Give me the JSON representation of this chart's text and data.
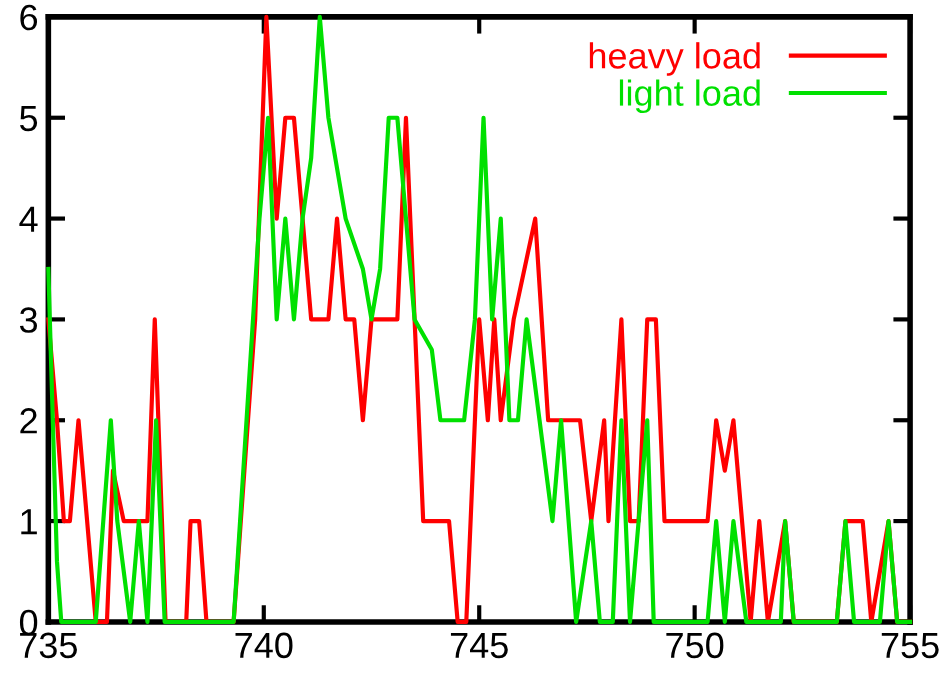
{
  "chart_data": {
    "type": "line",
    "xlim": [
      735,
      755
    ],
    "ylim": [
      0,
      6
    ],
    "xticks": [
      735,
      740,
      745,
      750,
      755
    ],
    "yticks": [
      0,
      1,
      2,
      3,
      4,
      5,
      6
    ],
    "legend": "top right",
    "grid": false,
    "line_style": "solid",
    "marker": "none",
    "series": [
      {
        "name": "heavy load",
        "color": "#ff0000",
        "x": [
          735.0,
          735.2,
          735.36,
          735.5,
          735.7,
          736.1,
          736.36,
          736.5,
          736.75,
          737.3,
          737.47,
          737.72,
          738.2,
          738.3,
          738.5,
          738.67,
          739.3,
          739.8,
          740.06,
          740.3,
          740.5,
          740.7,
          741.1,
          741.5,
          741.7,
          741.9,
          742.1,
          742.3,
          742.5,
          743.1,
          743.3,
          743.7,
          744.3,
          744.5,
          744.7,
          745.0,
          745.2,
          745.35,
          745.5,
          745.8,
          746.3,
          746.6,
          747.0,
          747.34,
          747.6,
          747.9,
          748.0,
          748.3,
          748.5,
          748.7,
          748.9,
          749.1,
          749.3,
          750.3,
          750.5,
          750.7,
          750.9,
          751.3,
          751.5,
          751.7,
          752.1,
          752.3,
          753.3,
          753.5,
          753.9,
          754.1,
          754.5,
          754.7,
          755.0
        ],
        "values": [
          3,
          2,
          1,
          1,
          2,
          0,
          0,
          1.5,
          1,
          1,
          3,
          0,
          0,
          1,
          1,
          0,
          0,
          3,
          6,
          4,
          5,
          5,
          3,
          3,
          4,
          3,
          3,
          2,
          3,
          3,
          5,
          1,
          1,
          0,
          0,
          3,
          2,
          3,
          2,
          3,
          4,
          2,
          2,
          2,
          1,
          2,
          1,
          3,
          1,
          1,
          3,
          3,
          1,
          1,
          2,
          1.5,
          2,
          0,
          1,
          0,
          1,
          0,
          0,
          1,
          1,
          0,
          1,
          0,
          0
        ]
      },
      {
        "name": "light load",
        "color": "#00e000",
        "x": [
          735.0,
          735.2,
          735.3,
          736.1,
          736.45,
          736.6,
          736.9,
          737.1,
          737.3,
          737.5,
          737.7,
          739.3,
          739.6,
          739.9,
          740.1,
          740.3,
          740.5,
          740.7,
          740.9,
          741.1,
          741.3,
          741.5,
          741.9,
          742.3,
          742.5,
          742.7,
          742.9,
          743.1,
          743.5,
          743.9,
          744.1,
          744.65,
          744.9,
          745.0,
          745.1,
          745.2,
          745.3,
          745.5,
          745.7,
          745.9,
          746.1,
          746.4,
          746.7,
          746.9,
          747.25,
          747.6,
          747.8,
          748.1,
          748.3,
          748.5,
          748.7,
          748.9,
          749.05,
          750.3,
          750.5,
          750.7,
          750.9,
          751.2,
          752.0,
          752.1,
          752.3,
          753.3,
          753.5,
          753.7,
          754.3,
          754.5,
          754.7,
          755.0
        ],
        "values": [
          3.5,
          0.6,
          0,
          0,
          2,
          1,
          0,
          1,
          0,
          2,
          0,
          0,
          2,
          4,
          5,
          3,
          4,
          3,
          4,
          4.6,
          6,
          5,
          4,
          3.5,
          3,
          3.5,
          5,
          5,
          3,
          2.7,
          2,
          2,
          3,
          4,
          5,
          4,
          3,
          4,
          2,
          2,
          3,
          2,
          1,
          2,
          0,
          1,
          0,
          0,
          2,
          0,
          1,
          2,
          0,
          0,
          1,
          0,
          1,
          0,
          0,
          1,
          0,
          0,
          1,
          0,
          0,
          1,
          0,
          0
        ]
      }
    ]
  }
}
